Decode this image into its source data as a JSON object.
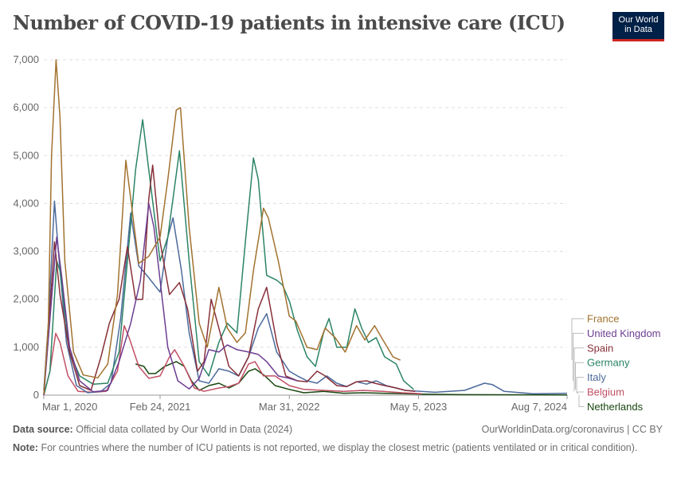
{
  "header": {
    "title": "Number of COVID-19 patients in intensive care (ICU)",
    "logo_line1": "Our World",
    "logo_line2": "in Data"
  },
  "footer": {
    "source_label": "Data source:",
    "source_text": "Official data collated by Our World in Data (2024)",
    "url_text": "OurWorldinData.org/coronavirus | CC BY",
    "note_label": "Note:",
    "note_text": "For countries where the number of ICU patients is not reported, we display the closest metric (patients ventilated or in critical condition)."
  },
  "chart_data": {
    "type": "line",
    "title": "Number of COVID-19 patients in intensive care (ICU)",
    "x_tick_labels": [
      "Mar 1, 2020",
      "Feb 24, 2021",
      "Mar 31, 2022",
      "May 5, 2023",
      "Aug 7, 2024"
    ],
    "x_tick_dates": [
      "2020-03-01",
      "2021-02-24",
      "2022-03-31",
      "2023-05-05",
      "2024-08-07"
    ],
    "xlim": [
      "2020-03-01",
      "2024-08-07"
    ],
    "ylim": [
      0,
      7000
    ],
    "y_ticks": [
      0,
      1000,
      2000,
      3000,
      4000,
      5000,
      6000,
      7000
    ],
    "y_tick_labels": [
      "0",
      "1,000",
      "2,000",
      "3,000",
      "4,000",
      "5,000",
      "6,000",
      "7,000"
    ],
    "grid": true,
    "legend_position": "right",
    "series": [
      {
        "name": "France",
        "color": "#a2722f",
        "points": [
          [
            "2020-03-01",
            20
          ],
          [
            "2020-03-15",
            1500
          ],
          [
            "2020-03-25",
            5000
          ],
          [
            "2020-04-08",
            7000
          ],
          [
            "2020-04-20",
            5800
          ],
          [
            "2020-05-05",
            2800
          ],
          [
            "2020-06-01",
            900
          ],
          [
            "2020-07-01",
            420
          ],
          [
            "2020-08-15",
            360
          ],
          [
            "2020-09-15",
            650
          ],
          [
            "2020-10-15",
            2100
          ],
          [
            "2020-11-10",
            4900
          ],
          [
            "2020-11-25",
            4100
          ],
          [
            "2020-12-20",
            2750
          ],
          [
            "2021-01-20",
            2900
          ],
          [
            "2021-02-24",
            3300
          ],
          [
            "2021-03-20",
            4500
          ],
          [
            "2021-04-15",
            5950
          ],
          [
            "2021-04-28",
            6000
          ],
          [
            "2021-05-25",
            3500
          ],
          [
            "2021-06-25",
            1500
          ],
          [
            "2021-07-20",
            1000
          ],
          [
            "2021-08-25",
            2250
          ],
          [
            "2021-09-20",
            1400
          ],
          [
            "2021-10-20",
            1100
          ],
          [
            "2021-11-15",
            1300
          ],
          [
            "2021-12-10",
            2600
          ],
          [
            "2022-01-10",
            3900
          ],
          [
            "2022-01-25",
            3700
          ],
          [
            "2022-02-25",
            2800
          ],
          [
            "2022-03-31",
            1650
          ],
          [
            "2022-04-20",
            1550
          ],
          [
            "2022-05-25",
            1000
          ],
          [
            "2022-06-25",
            950
          ],
          [
            "2022-07-20",
            1400
          ],
          [
            "2022-08-20",
            1200
          ],
          [
            "2022-09-20",
            900
          ],
          [
            "2022-10-25",
            1450
          ],
          [
            "2022-11-20",
            1150
          ],
          [
            "2022-12-20",
            1450
          ],
          [
            "2023-01-15",
            1150
          ],
          [
            "2023-02-15",
            800
          ],
          [
            "2023-03-10",
            730
          ]
        ]
      },
      {
        "name": "United Kingdom",
        "color": "#6d3e91",
        "points": [
          [
            "2020-03-01",
            0
          ],
          [
            "2020-03-25",
            2000
          ],
          [
            "2020-04-10",
            3300
          ],
          [
            "2020-04-25",
            2500
          ],
          [
            "2020-05-20",
            1000
          ],
          [
            "2020-06-20",
            300
          ],
          [
            "2020-08-01",
            70
          ],
          [
            "2020-09-15",
            100
          ],
          [
            "2020-10-20",
            700
          ],
          [
            "2020-11-25",
            1500
          ],
          [
            "2020-12-25",
            2400
          ],
          [
            "2021-01-20",
            4000
          ],
          [
            "2021-02-05",
            3500
          ],
          [
            "2021-02-24",
            2400
          ],
          [
            "2021-03-20",
            1000
          ],
          [
            "2021-04-20",
            300
          ],
          [
            "2021-05-25",
            130
          ],
          [
            "2021-06-25",
            350
          ],
          [
            "2021-07-25",
            950
          ],
          [
            "2021-08-25",
            900
          ],
          [
            "2021-09-20",
            1050
          ],
          [
            "2021-10-20",
            950
          ],
          [
            "2021-11-25",
            900
          ],
          [
            "2021-12-25",
            850
          ],
          [
            "2022-01-20",
            700
          ],
          [
            "2022-02-25",
            400
          ],
          [
            "2022-03-31",
            350
          ],
          [
            "2022-04-25",
            300
          ]
        ]
      },
      {
        "name": "Spain",
        "color": "#883039",
        "points": [
          [
            "2020-03-01",
            0
          ],
          [
            "2020-03-20",
            1800
          ],
          [
            "2020-04-03",
            3200
          ],
          [
            "2020-04-20",
            2100
          ],
          [
            "2020-05-20",
            900
          ],
          [
            "2020-06-20",
            200
          ],
          [
            "2020-07-25",
            100
          ],
          [
            "2020-08-25",
            800
          ],
          [
            "2020-09-20",
            1500
          ],
          [
            "2020-10-20",
            2000
          ],
          [
            "2020-11-15",
            3100
          ],
          [
            "2020-12-10",
            2000
          ],
          [
            "2021-01-01",
            2000
          ],
          [
            "2021-01-20",
            4100
          ],
          [
            "2021-02-01",
            4800
          ],
          [
            "2021-02-24",
            3200
          ],
          [
            "2021-03-25",
            2100
          ],
          [
            "2021-04-25",
            2350
          ],
          [
            "2021-05-20",
            1800
          ],
          [
            "2021-06-20",
            500
          ],
          [
            "2021-07-10",
            700
          ],
          [
            "2021-08-01",
            2000
          ],
          [
            "2021-08-25",
            1400
          ],
          [
            "2021-09-25",
            600
          ],
          [
            "2021-10-25",
            400
          ],
          [
            "2021-11-25",
            800
          ],
          [
            "2021-12-25",
            1800
          ],
          [
            "2022-01-20",
            2250
          ],
          [
            "2022-02-20",
            1100
          ],
          [
            "2022-03-20",
            400
          ],
          [
            "2022-04-25",
            300
          ],
          [
            "2022-05-25",
            280
          ],
          [
            "2022-06-25",
            500
          ],
          [
            "2022-07-20",
            400
          ],
          [
            "2022-08-25",
            200
          ],
          [
            "2022-09-25",
            180
          ],
          [
            "2022-10-25",
            280
          ],
          [
            "2022-11-25",
            300
          ],
          [
            "2022-12-20",
            250
          ],
          [
            "2023-01-20",
            200
          ],
          [
            "2023-02-25",
            150
          ],
          [
            "2023-03-25",
            100
          ],
          [
            "2023-04-25",
            80
          ]
        ]
      },
      {
        "name": "Germany",
        "color": "#2b8465",
        "points": [
          [
            "2020-03-01",
            0
          ],
          [
            "2020-03-20",
            500
          ],
          [
            "2020-04-10",
            2800
          ],
          [
            "2020-04-20",
            2600
          ],
          [
            "2020-05-20",
            900
          ],
          [
            "2020-06-20",
            400
          ],
          [
            "2020-08-01",
            230
          ],
          [
            "2020-09-15",
            250
          ],
          [
            "2020-10-20",
            900
          ],
          [
            "2020-11-15",
            2800
          ],
          [
            "2020-12-10",
            4700
          ],
          [
            "2021-01-01",
            5750
          ],
          [
            "2021-01-20",
            4700
          ],
          [
            "2021-02-24",
            2800
          ],
          [
            "2021-03-20",
            3300
          ],
          [
            "2021-04-25",
            5100
          ],
          [
            "2021-05-25",
            2800
          ],
          [
            "2021-06-25",
            700
          ],
          [
            "2021-07-25",
            400
          ],
          [
            "2021-08-25",
            1100
          ],
          [
            "2021-09-20",
            1500
          ],
          [
            "2021-10-20",
            1300
          ],
          [
            "2021-11-15",
            3200
          ],
          [
            "2021-12-10",
            4950
          ],
          [
            "2021-12-25",
            4500
          ],
          [
            "2022-01-20",
            2500
          ],
          [
            "2022-02-20",
            2400
          ],
          [
            "2022-03-10",
            2300
          ],
          [
            "2022-04-01",
            1950
          ],
          [
            "2022-04-25",
            1350
          ],
          [
            "2022-05-25",
            800
          ],
          [
            "2022-06-20",
            600
          ],
          [
            "2022-07-15",
            1300
          ],
          [
            "2022-08-01",
            1600
          ],
          [
            "2022-08-25",
            1000
          ],
          [
            "2022-09-25",
            1000
          ],
          [
            "2022-10-20",
            1800
          ],
          [
            "2022-11-10",
            1400
          ],
          [
            "2022-12-01",
            1100
          ],
          [
            "2022-12-25",
            1200
          ],
          [
            "2023-01-20",
            800
          ],
          [
            "2023-02-25",
            650
          ],
          [
            "2023-03-20",
            300
          ],
          [
            "2023-04-20",
            120
          ]
        ]
      },
      {
        "name": "Italy",
        "color": "#4c6a9c",
        "points": [
          [
            "2020-03-01",
            100
          ],
          [
            "2020-03-15",
            1500
          ],
          [
            "2020-04-03",
            4050
          ],
          [
            "2020-04-15",
            3000
          ],
          [
            "2020-05-10",
            1100
          ],
          [
            "2020-06-10",
            200
          ],
          [
            "2020-07-15",
            50
          ],
          [
            "2020-08-25",
            80
          ],
          [
            "2020-09-25",
            250
          ],
          [
            "2020-10-25",
            1600
          ],
          [
            "2020-11-25",
            3800
          ],
          [
            "2020-12-20",
            2700
          ],
          [
            "2021-01-20",
            2450
          ],
          [
            "2021-02-24",
            2150
          ],
          [
            "2021-03-20",
            3300
          ],
          [
            "2021-04-05",
            3700
          ],
          [
            "2021-05-01",
            2600
          ],
          [
            "2021-05-25",
            1300
          ],
          [
            "2021-06-25",
            300
          ],
          [
            "2021-07-25",
            250
          ],
          [
            "2021-08-25",
            550
          ],
          [
            "2021-09-25",
            500
          ],
          [
            "2021-10-25",
            400
          ],
          [
            "2021-11-25",
            800
          ],
          [
            "2021-12-25",
            1400
          ],
          [
            "2022-01-20",
            1700
          ],
          [
            "2022-02-20",
            900
          ],
          [
            "2022-03-31",
            500
          ],
          [
            "2022-04-25",
            400
          ],
          [
            "2022-05-25",
            300
          ],
          [
            "2022-06-25",
            250
          ],
          [
            "2022-07-25",
            400
          ],
          [
            "2022-08-25",
            250
          ],
          [
            "2022-09-25",
            180
          ],
          [
            "2022-10-25",
            280
          ],
          [
            "2022-11-25",
            230
          ],
          [
            "2022-12-25",
            300
          ],
          [
            "2023-01-25",
            200
          ],
          [
            "2023-03-25",
            100
          ],
          [
            "2023-06-25",
            60
          ],
          [
            "2023-09-25",
            100
          ],
          [
            "2023-11-25",
            250
          ],
          [
            "2023-12-20",
            220
          ],
          [
            "2024-01-25",
            80
          ],
          [
            "2024-04-25",
            30
          ],
          [
            "2024-08-07",
            40
          ]
        ]
      },
      {
        "name": "Belgium",
        "color": "#c15065",
        "points": [
          [
            "2020-03-01",
            0
          ],
          [
            "2020-03-20",
            500
          ],
          [
            "2020-04-07",
            1290
          ],
          [
            "2020-04-20",
            1100
          ],
          [
            "2020-05-15",
            400
          ],
          [
            "2020-06-15",
            80
          ],
          [
            "2020-08-01",
            60
          ],
          [
            "2020-09-10",
            80
          ],
          [
            "2020-10-15",
            500
          ],
          [
            "2020-11-05",
            1450
          ],
          [
            "2020-11-20",
            1200
          ],
          [
            "2020-12-20",
            600
          ],
          [
            "2021-01-20",
            350
          ],
          [
            "2021-02-24",
            400
          ],
          [
            "2021-03-25",
            800
          ],
          [
            "2021-04-10",
            950
          ],
          [
            "2021-05-10",
            600
          ],
          [
            "2021-06-10",
            150
          ],
          [
            "2021-07-10",
            80
          ],
          [
            "2021-08-25",
            150
          ],
          [
            "2021-09-25",
            180
          ],
          [
            "2021-10-25",
            250
          ],
          [
            "2021-11-25",
            650
          ],
          [
            "2021-12-15",
            700
          ],
          [
            "2022-01-10",
            400
          ],
          [
            "2022-02-15",
            400
          ],
          [
            "2022-03-31",
            200
          ],
          [
            "2022-05-15",
            120
          ],
          [
            "2022-07-15",
            100
          ],
          [
            "2022-09-15",
            80
          ],
          [
            "2022-11-15",
            100
          ],
          [
            "2023-01-15",
            80
          ],
          [
            "2023-03-15",
            50
          ],
          [
            "2023-05-15",
            30
          ]
        ]
      },
      {
        "name": "Netherlands",
        "color": "#18470f",
        "points": [
          [
            "2020-12-10",
            650
          ],
          [
            "2021-01-05",
            600
          ],
          [
            "2021-01-20",
            450
          ],
          [
            "2021-02-10",
            450
          ],
          [
            "2021-03-10",
            600
          ],
          [
            "2021-04-15",
            700
          ],
          [
            "2021-05-10",
            600
          ],
          [
            "2021-06-01",
            300
          ],
          [
            "2021-06-25",
            100
          ],
          [
            "2021-07-25",
            200
          ],
          [
            "2021-08-25",
            250
          ],
          [
            "2021-09-25",
            150
          ],
          [
            "2021-10-25",
            250
          ],
          [
            "2021-11-25",
            500
          ],
          [
            "2021-12-15",
            550
          ],
          [
            "2022-01-15",
            400
          ],
          [
            "2022-02-15",
            200
          ],
          [
            "2022-03-31",
            120
          ],
          [
            "2022-05-15",
            50
          ],
          [
            "2022-07-15",
            80
          ],
          [
            "2022-09-15",
            40
          ],
          [
            "2022-11-15",
            50
          ],
          [
            "2023-01-15",
            40
          ],
          [
            "2023-05-15",
            20
          ],
          [
            "2023-09-15",
            10
          ],
          [
            "2024-01-15",
            8
          ],
          [
            "2024-08-07",
            5
          ]
        ]
      }
    ]
  }
}
